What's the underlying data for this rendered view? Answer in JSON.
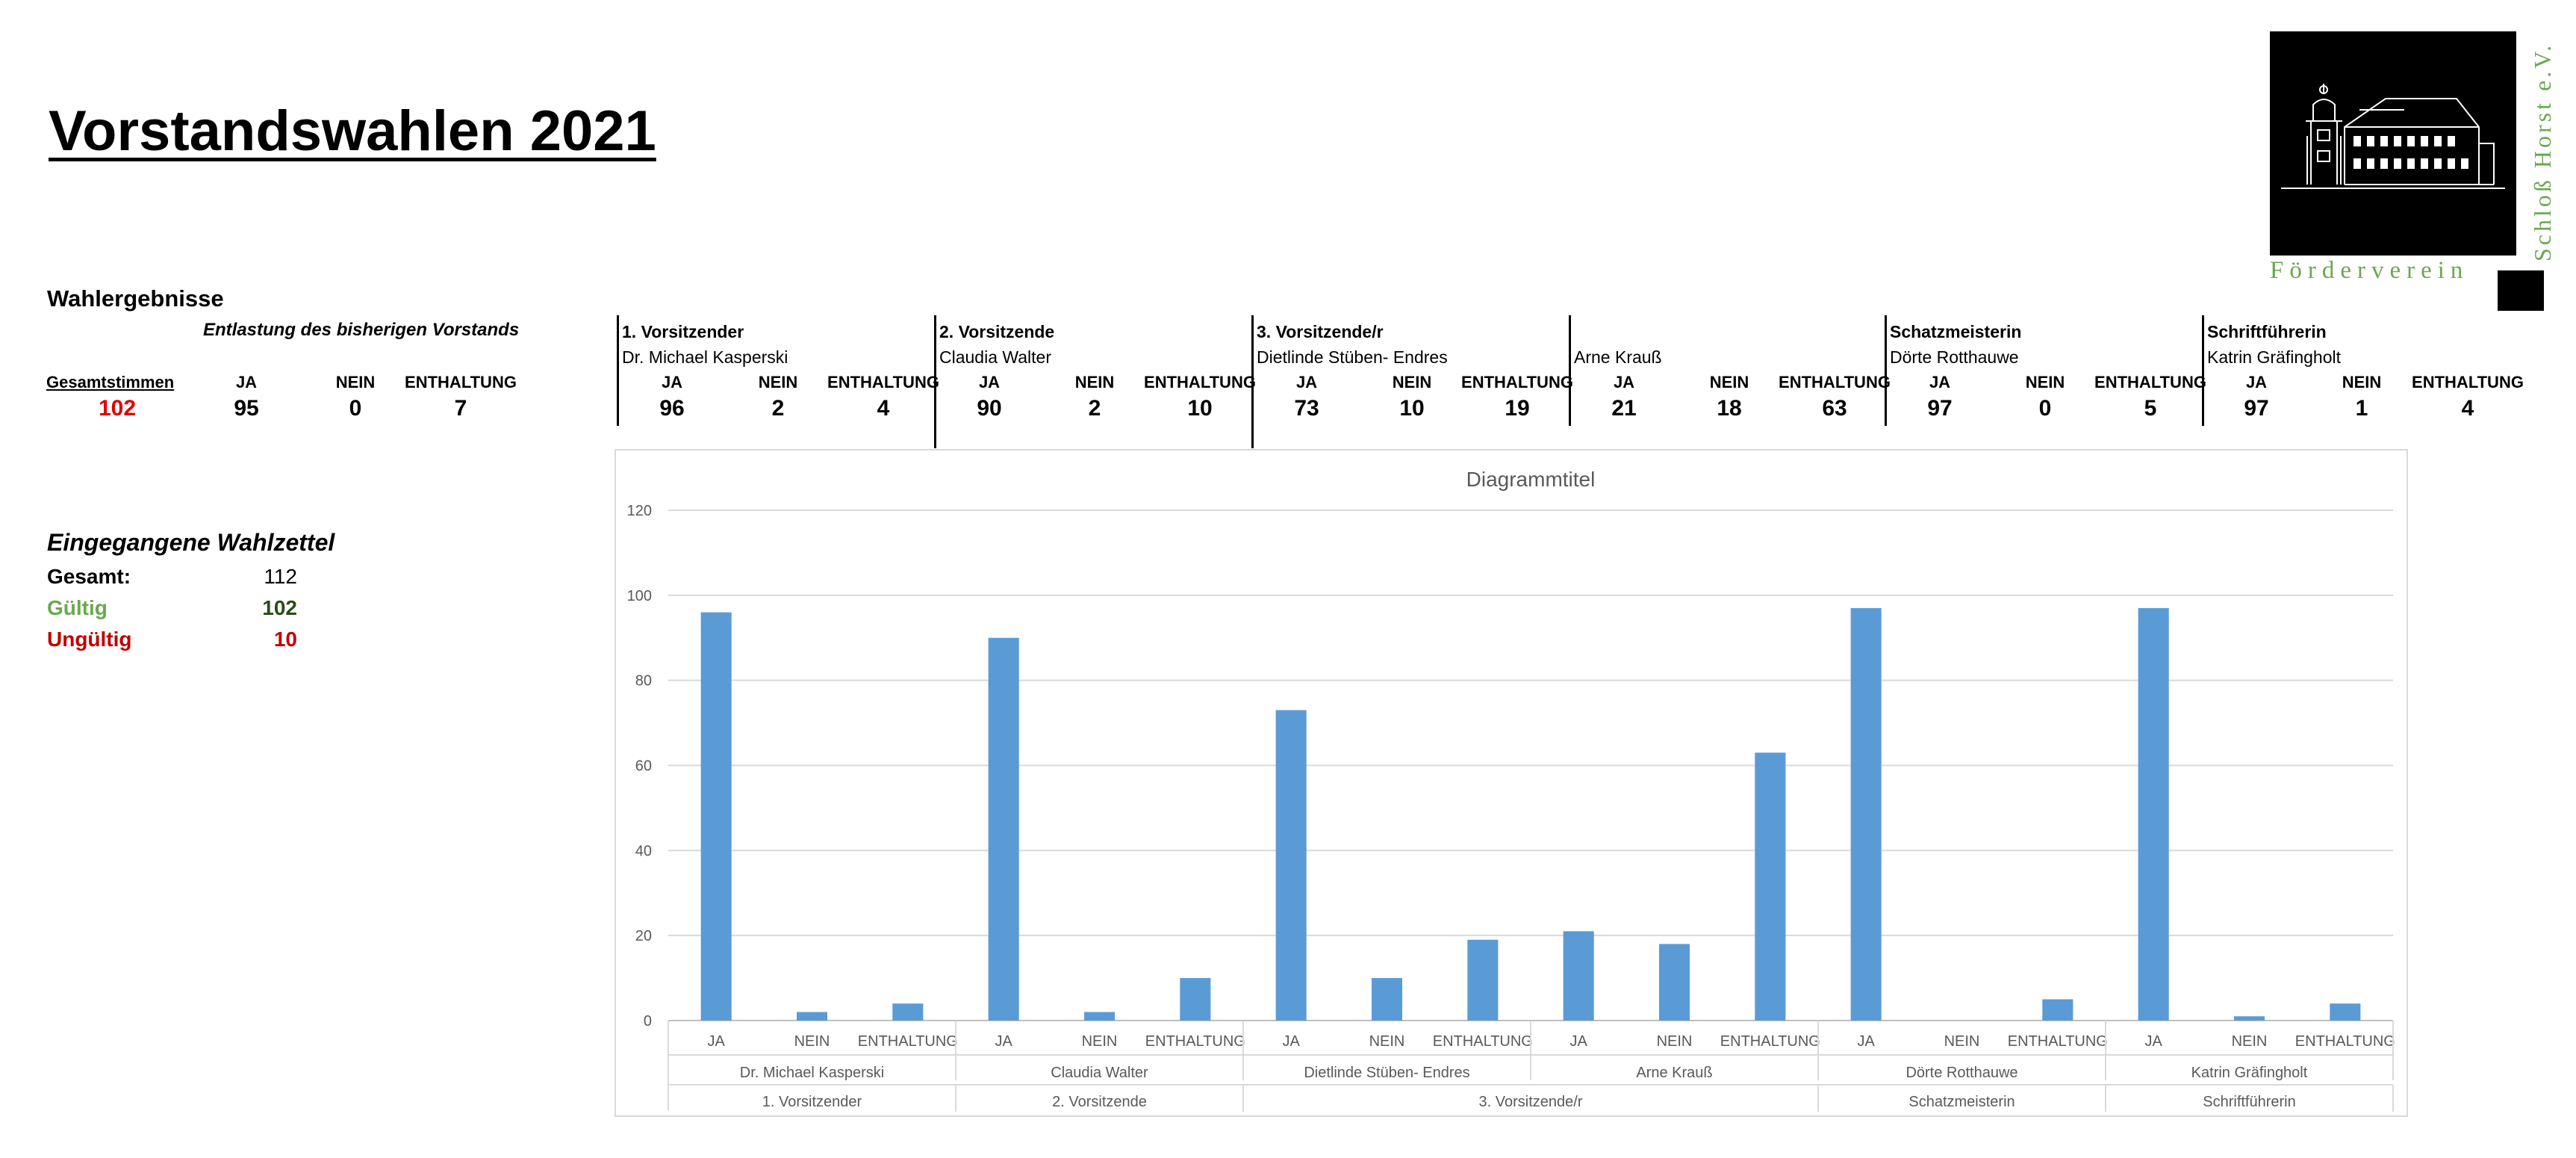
{
  "title": "Vorstandswahlen 2021",
  "results_heading": "Wahlergebnisse",
  "entlastung": {
    "subtitle": "Entlastung des bisherigen Vorstands",
    "total_label": "Gesamtstimmen",
    "total_value": "102",
    "ja_label": "JA",
    "nein_label": "NEIN",
    "enth_label": "ENTHALTUNG",
    "ja": "95",
    "nein": "0",
    "enth": "7"
  },
  "positions": [
    {
      "role": "1. Vorsitzender",
      "candidate": "Dr. Michael Kasperski",
      "ja": "96",
      "nein": "2",
      "enth": "4"
    },
    {
      "role": "2. Vorsitzende",
      "candidate": "Claudia Walter",
      "ja": "90",
      "nein": "2",
      "enth": "10"
    },
    {
      "role": "3. Vorsitzende/r",
      "candidate": "Dietlinde Stüben- Endres",
      "ja": "73",
      "nein": "10",
      "enth": "19"
    },
    {
      "role": "",
      "candidate": "Arne Krauß",
      "ja": "21",
      "nein": "18",
      "enth": "63"
    },
    {
      "role": "Schatzmeisterin",
      "candidate": "Dörte Rotthauwe",
      "ja": "97",
      "nein": "0",
      "enth": "5"
    },
    {
      "role": "Schriftführerin",
      "candidate": "Katrin Gräfingholt",
      "ja": "97",
      "nein": "1",
      "enth": "4"
    }
  ],
  "vote_labels": {
    "ja": "JA",
    "nein": "NEIN",
    "enth": "ENTHALTUNG"
  },
  "ballots": {
    "heading": "Eingegangene Wahlzettel",
    "total_label": "Gesamt:",
    "total_value": "112",
    "valid_label": "Gültig",
    "valid_value": "102",
    "invalid_label": "Ungültig",
    "invalid_value": "10"
  },
  "logo": {
    "vertical_text": "Schloß Horst e.V.",
    "bottom_text": "Förderverein"
  },
  "colors": {
    "bar": "#5b9bd5",
    "valid": "#6aa84f",
    "valid_value": "#274e13",
    "invalid": "#c00000",
    "logo_text": "#6aa84f"
  },
  "chart_data": {
    "type": "bar",
    "title": "Diagrammtitel",
    "ylim": [
      0,
      120
    ],
    "yticks": [
      0,
      20,
      40,
      60,
      80,
      100,
      120
    ],
    "grid": true,
    "categories": [
      "JA",
      "NEIN",
      "ENTHALTUNG",
      "JA",
      "NEIN",
      "ENTHALTUNG",
      "JA",
      "NEIN",
      "ENTHALTUNG",
      "JA",
      "NEIN",
      "ENTHALTUNG",
      "JA",
      "NEIN",
      "ENTHALTUNG",
      "JA",
      "NEIN",
      "ENTHALTUNG"
    ],
    "values": [
      96,
      2,
      4,
      90,
      2,
      10,
      73,
      10,
      19,
      21,
      18,
      63,
      97,
      0,
      5,
      97,
      1,
      4
    ],
    "candidates": [
      "Dr. Michael Kasperski",
      "Claudia Walter",
      "Dietlinde Stüben- Endres",
      "Arne Krauß",
      "Dörte Rotthauwe",
      "Katrin Gräfingholt"
    ],
    "roles": [
      {
        "label": "1. Vorsitzender",
        "span": 1
      },
      {
        "label": "2. Vorsitzende",
        "span": 1
      },
      {
        "label": "3. Vorsitzende/r",
        "span": 2
      },
      {
        "label": "Schatzmeisterin",
        "span": 1
      },
      {
        "label": "Schriftführerin",
        "span": 1
      }
    ]
  }
}
